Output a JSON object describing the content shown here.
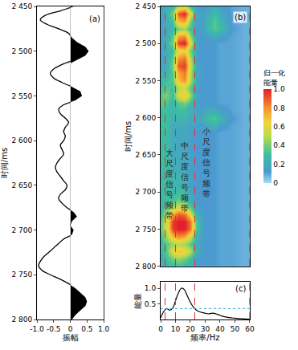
{
  "chart_data": [
    {
      "type": "line",
      "title": "(a)",
      "x_label": "振幅",
      "y_label": "时间/ms",
      "color": "#000000",
      "x": [
        0.1,
        -0.3,
        -0.75,
        -0.9,
        -0.7,
        -0.35,
        -0.05,
        0.05,
        0.2,
        0.45,
        0.55,
        0.45,
        0.1,
        -0.25,
        -0.5,
        -0.6,
        -0.5,
        -0.25,
        0.05,
        0.3,
        0.35,
        0.15,
        -0.2,
        -0.35,
        -0.3,
        -0.15,
        -0.05,
        -0.15,
        -0.2,
        -0.15,
        -0.2,
        -0.3,
        -0.25,
        -0.2,
        -0.3,
        -0.4,
        -0.45,
        -0.4,
        -0.3,
        -0.2,
        -0.1,
        -0.15,
        -0.3,
        -0.35,
        -0.25,
        -0.1,
        0.1,
        0.2,
        0.05,
        0.0,
        0.1,
        0.05,
        -0.2,
        -0.35,
        -0.5,
        -0.65,
        -0.8,
        -0.9,
        -0.95,
        -0.85,
        -0.6,
        -0.3,
        -0.05,
        0.15,
        0.3,
        0.45,
        0.5,
        0.45,
        0.3,
        0.15,
        0.05
      ],
      "y": [
        2450,
        2455,
        2460,
        2465,
        2470,
        2475,
        2480,
        2485,
        2490,
        2495,
        2500,
        2505,
        2510,
        2515,
        2520,
        2525,
        2530,
        2535,
        2540,
        2545,
        2550,
        2555,
        2560,
        2565,
        2570,
        2575,
        2580,
        2585,
        2590,
        2595,
        2600,
        2605,
        2610,
        2615,
        2620,
        2625,
        2630,
        2635,
        2640,
        2645,
        2650,
        2655,
        2660,
        2665,
        2670,
        2675,
        2680,
        2685,
        2690,
        2695,
        2700,
        2705,
        2710,
        2715,
        2720,
        2725,
        2730,
        2735,
        2740,
        2745,
        2750,
        2755,
        2760,
        2765,
        2770,
        2775,
        2780,
        2785,
        2790,
        2795,
        2800
      ],
      "xlim": [
        -1,
        1
      ],
      "xticks": [
        {
          "value": -1,
          "label": "-1.0"
        },
        {
          "value": -0.5,
          "label": "-0.5"
        },
        0,
        0.5,
        {
          "value": 1,
          "label": "1.0"
        }
      ],
      "ylim": [
        2800,
        2450
      ],
      "yticks": [
        {
          "value": 2450,
          "label": "2 450"
        },
        {
          "value": 2500,
          "label": "2 500"
        },
        {
          "value": 2550,
          "label": "2 550"
        },
        {
          "value": 2600,
          "label": "2 600"
        },
        {
          "value": 2650,
          "label": "2 650"
        },
        {
          "value": 2700,
          "label": "2 700"
        },
        {
          "value": 2750,
          "label": "2 750"
        },
        {
          "value": 2800,
          "label": "2 800"
        }
      ],
      "grid": false
    },
    {
      "type": "heatmap",
      "title": "(b)",
      "y_label": "时间/ms",
      "tick_labels": "y",
      "x": [
        0,
        4,
        8,
        12,
        16,
        20,
        24,
        28,
        32,
        36,
        40,
        48,
        56,
        60
      ],
      "y": [
        2450,
        2460,
        2470,
        2480,
        2490,
        2500,
        2510,
        2520,
        2530,
        2540,
        2550,
        2560,
        2570,
        2580,
        2590,
        2600,
        2610,
        2620,
        2630,
        2640,
        2650,
        2660,
        2670,
        2680,
        2690,
        2700,
        2710,
        2720,
        2730,
        2740,
        2750,
        2760,
        2770,
        2780,
        2790,
        2800
      ],
      "z": [
        [
          0.15,
          0.2,
          0.25,
          0.5,
          0.55,
          0.3,
          0.15,
          0.12,
          0.15,
          0.2,
          0.15,
          0.1,
          0.08,
          0.08
        ],
        [
          0.15,
          0.25,
          0.4,
          0.9,
          1.0,
          0.6,
          0.2,
          0.15,
          0.2,
          0.3,
          0.2,
          0.1,
          0.08,
          0.08
        ],
        [
          0.15,
          0.2,
          0.3,
          0.7,
          0.75,
          0.4,
          0.15,
          0.15,
          0.25,
          0.35,
          0.25,
          0.1,
          0.08,
          0.08
        ],
        [
          0.15,
          0.2,
          0.25,
          0.4,
          0.45,
          0.3,
          0.15,
          0.15,
          0.25,
          0.35,
          0.3,
          0.12,
          0.08,
          0.08
        ],
        [
          0.15,
          0.2,
          0.35,
          0.75,
          0.8,
          0.45,
          0.15,
          0.12,
          0.15,
          0.2,
          0.15,
          0.1,
          0.08,
          0.08
        ],
        [
          0.15,
          0.25,
          0.4,
          0.95,
          1.0,
          0.6,
          0.2,
          0.12,
          0.12,
          0.12,
          0.1,
          0.1,
          0.08,
          0.08
        ],
        [
          0.15,
          0.2,
          0.3,
          0.6,
          0.65,
          0.4,
          0.15,
          0.12,
          0.12,
          0.12,
          0.1,
          0.1,
          0.08,
          0.08
        ],
        [
          0.15,
          0.2,
          0.35,
          0.8,
          0.85,
          0.5,
          0.15,
          0.12,
          0.12,
          0.12,
          0.1,
          0.1,
          0.08,
          0.08
        ],
        [
          0.15,
          0.2,
          0.4,
          0.9,
          0.95,
          0.55,
          0.2,
          0.12,
          0.12,
          0.12,
          0.1,
          0.1,
          0.08,
          0.08
        ],
        [
          0.2,
          0.25,
          0.35,
          0.75,
          0.85,
          0.5,
          0.2,
          0.12,
          0.12,
          0.12,
          0.1,
          0.1,
          0.08,
          0.08
        ],
        [
          0.25,
          0.3,
          0.35,
          0.7,
          0.8,
          0.5,
          0.2,
          0.12,
          0.12,
          0.12,
          0.1,
          0.1,
          0.08,
          0.08
        ],
        [
          0.3,
          0.35,
          0.3,
          0.5,
          0.55,
          0.35,
          0.15,
          0.12,
          0.12,
          0.12,
          0.1,
          0.1,
          0.08,
          0.08
        ],
        [
          0.35,
          0.4,
          0.3,
          0.6,
          0.7,
          0.45,
          0.18,
          0.12,
          0.12,
          0.12,
          0.1,
          0.1,
          0.08,
          0.08
        ],
        [
          0.35,
          0.35,
          0.25,
          0.35,
          0.4,
          0.3,
          0.15,
          0.12,
          0.12,
          0.12,
          0.1,
          0.1,
          0.08,
          0.08
        ],
        [
          0.3,
          0.3,
          0.25,
          0.3,
          0.3,
          0.2,
          0.15,
          0.15,
          0.2,
          0.2,
          0.15,
          0.1,
          0.08,
          0.08
        ],
        [
          0.3,
          0.3,
          0.25,
          0.25,
          0.25,
          0.2,
          0.2,
          0.2,
          0.3,
          0.35,
          0.25,
          0.12,
          0.08,
          0.08
        ],
        [
          0.3,
          0.3,
          0.2,
          0.2,
          0.2,
          0.18,
          0.15,
          0.15,
          0.2,
          0.25,
          0.15,
          0.1,
          0.08,
          0.08
        ],
        [
          0.3,
          0.3,
          0.2,
          0.18,
          0.18,
          0.15,
          0.12,
          0.12,
          0.12,
          0.12,
          0.1,
          0.1,
          0.08,
          0.08
        ],
        [
          0.3,
          0.28,
          0.2,
          0.18,
          0.18,
          0.15,
          0.12,
          0.12,
          0.12,
          0.12,
          0.1,
          0.1,
          0.08,
          0.08
        ],
        [
          0.3,
          0.28,
          0.2,
          0.18,
          0.18,
          0.15,
          0.12,
          0.12,
          0.12,
          0.12,
          0.1,
          0.1,
          0.08,
          0.08
        ],
        [
          0.28,
          0.28,
          0.2,
          0.2,
          0.2,
          0.15,
          0.12,
          0.12,
          0.12,
          0.12,
          0.1,
          0.1,
          0.08,
          0.08
        ],
        [
          0.28,
          0.3,
          0.22,
          0.2,
          0.2,
          0.15,
          0.12,
          0.12,
          0.12,
          0.12,
          0.1,
          0.1,
          0.08,
          0.08
        ],
        [
          0.25,
          0.28,
          0.22,
          0.2,
          0.2,
          0.15,
          0.12,
          0.12,
          0.12,
          0.12,
          0.1,
          0.1,
          0.08,
          0.08
        ],
        [
          0.25,
          0.28,
          0.25,
          0.25,
          0.22,
          0.15,
          0.12,
          0.12,
          0.12,
          0.12,
          0.1,
          0.1,
          0.08,
          0.08
        ],
        [
          0.25,
          0.28,
          0.25,
          0.25,
          0.22,
          0.15,
          0.12,
          0.12,
          0.12,
          0.12,
          0.1,
          0.1,
          0.08,
          0.08
        ],
        [
          0.25,
          0.28,
          0.25,
          0.3,
          0.25,
          0.18,
          0.12,
          0.12,
          0.12,
          0.12,
          0.1,
          0.1,
          0.08,
          0.08
        ],
        [
          0.25,
          0.3,
          0.3,
          0.35,
          0.3,
          0.2,
          0.12,
          0.12,
          0.12,
          0.12,
          0.1,
          0.1,
          0.08,
          0.08
        ],
        [
          0.25,
          0.35,
          0.45,
          0.55,
          0.5,
          0.35,
          0.15,
          0.12,
          0.12,
          0.12,
          0.1,
          0.1,
          0.08,
          0.08
        ],
        [
          0.3,
          0.45,
          0.75,
          0.9,
          0.85,
          0.6,
          0.25,
          0.15,
          0.12,
          0.12,
          0.1,
          0.1,
          0.08,
          0.08
        ],
        [
          0.35,
          0.55,
          0.95,
          1.0,
          1.0,
          0.85,
          0.35,
          0.15,
          0.12,
          0.12,
          0.1,
          0.1,
          0.08,
          0.08
        ],
        [
          0.35,
          0.55,
          0.95,
          1.0,
          1.0,
          0.85,
          0.35,
          0.15,
          0.12,
          0.12,
          0.1,
          0.1,
          0.08,
          0.08
        ],
        [
          0.3,
          0.45,
          0.7,
          0.8,
          0.75,
          0.55,
          0.25,
          0.15,
          0.12,
          0.12,
          0.1,
          0.1,
          0.08,
          0.08
        ],
        [
          0.25,
          0.35,
          0.45,
          0.5,
          0.45,
          0.35,
          0.2,
          0.12,
          0.12,
          0.12,
          0.1,
          0.1,
          0.08,
          0.08
        ],
        [
          0.25,
          0.35,
          0.6,
          0.7,
          0.65,
          0.5,
          0.25,
          0.15,
          0.12,
          0.12,
          0.1,
          0.1,
          0.08,
          0.08
        ],
        [
          0.2,
          0.3,
          0.4,
          0.45,
          0.4,
          0.3,
          0.15,
          0.12,
          0.12,
          0.12,
          0.1,
          0.1,
          0.08,
          0.08
        ],
        [
          0.2,
          0.25,
          0.25,
          0.3,
          0.25,
          0.2,
          0.12,
          0.12,
          0.12,
          0.12,
          0.1,
          0.1,
          0.08,
          0.08
        ]
      ],
      "xlim": [
        0,
        60
      ],
      "ylim": [
        2800,
        2450
      ],
      "yticks": [
        {
          "value": 2450,
          "label": "2 450"
        },
        {
          "value": 2500,
          "label": "2 500"
        },
        {
          "value": 2550,
          "label": "2 550"
        },
        {
          "value": 2600,
          "label": "2 600"
        },
        {
          "value": 2650,
          "label": "2 650"
        },
        {
          "value": 2700,
          "label": "2 700"
        },
        {
          "value": 2750,
          "label": "2 750"
        },
        {
          "value": 2800,
          "label": "2 800"
        }
      ],
      "zlim": [
        0,
        1
      ],
      "zticks": [
        0,
        0.2,
        0.4,
        0.6,
        0.8,
        {
          "value": 1,
          "label": "1.0"
        }
      ],
      "colorbar_title": [
        "归一化",
        "能量"
      ],
      "annotations": [
        {
          "text": "大尺度信号频带",
          "x": 6,
          "y": 2690
        },
        {
          "text": "中尺度信号频带",
          "x": 16.5,
          "y": 2680
        },
        {
          "text": "小尺度信号频带",
          "x": 31,
          "y": 2660
        }
      ],
      "band_edges": [
        3,
        10,
        23,
        60
      ]
    },
    {
      "type": "line",
      "title": "(c)",
      "x_label": "频率/Hz",
      "y_label": "能量",
      "color": "#000000",
      "x": [
        0,
        2,
        4,
        6,
        8,
        10,
        12,
        14,
        16,
        18,
        20,
        22,
        24,
        26,
        28,
        30,
        32,
        35,
        38,
        42,
        46,
        50,
        55,
        60
      ],
      "values": [
        0.05,
        0.25,
        0.35,
        0.3,
        0.35,
        0.6,
        0.85,
        1.0,
        0.95,
        0.75,
        0.55,
        0.4,
        0.3,
        0.25,
        0.22,
        0.2,
        0.18,
        0.2,
        0.17,
        0.1,
        0.06,
        0.04,
        0.02,
        0.01
      ],
      "xlim": [
        0,
        60
      ],
      "xticks": [
        0,
        10,
        20,
        30,
        40,
        50,
        60
      ],
      "ylim": [
        0,
        1.2
      ],
      "yticks": [
        0.5,
        {
          "value": 1,
          "label": "1.0"
        }
      ],
      "band_edges": [
        3,
        10,
        23,
        60
      ],
      "threshold": 0.35
    }
  ]
}
